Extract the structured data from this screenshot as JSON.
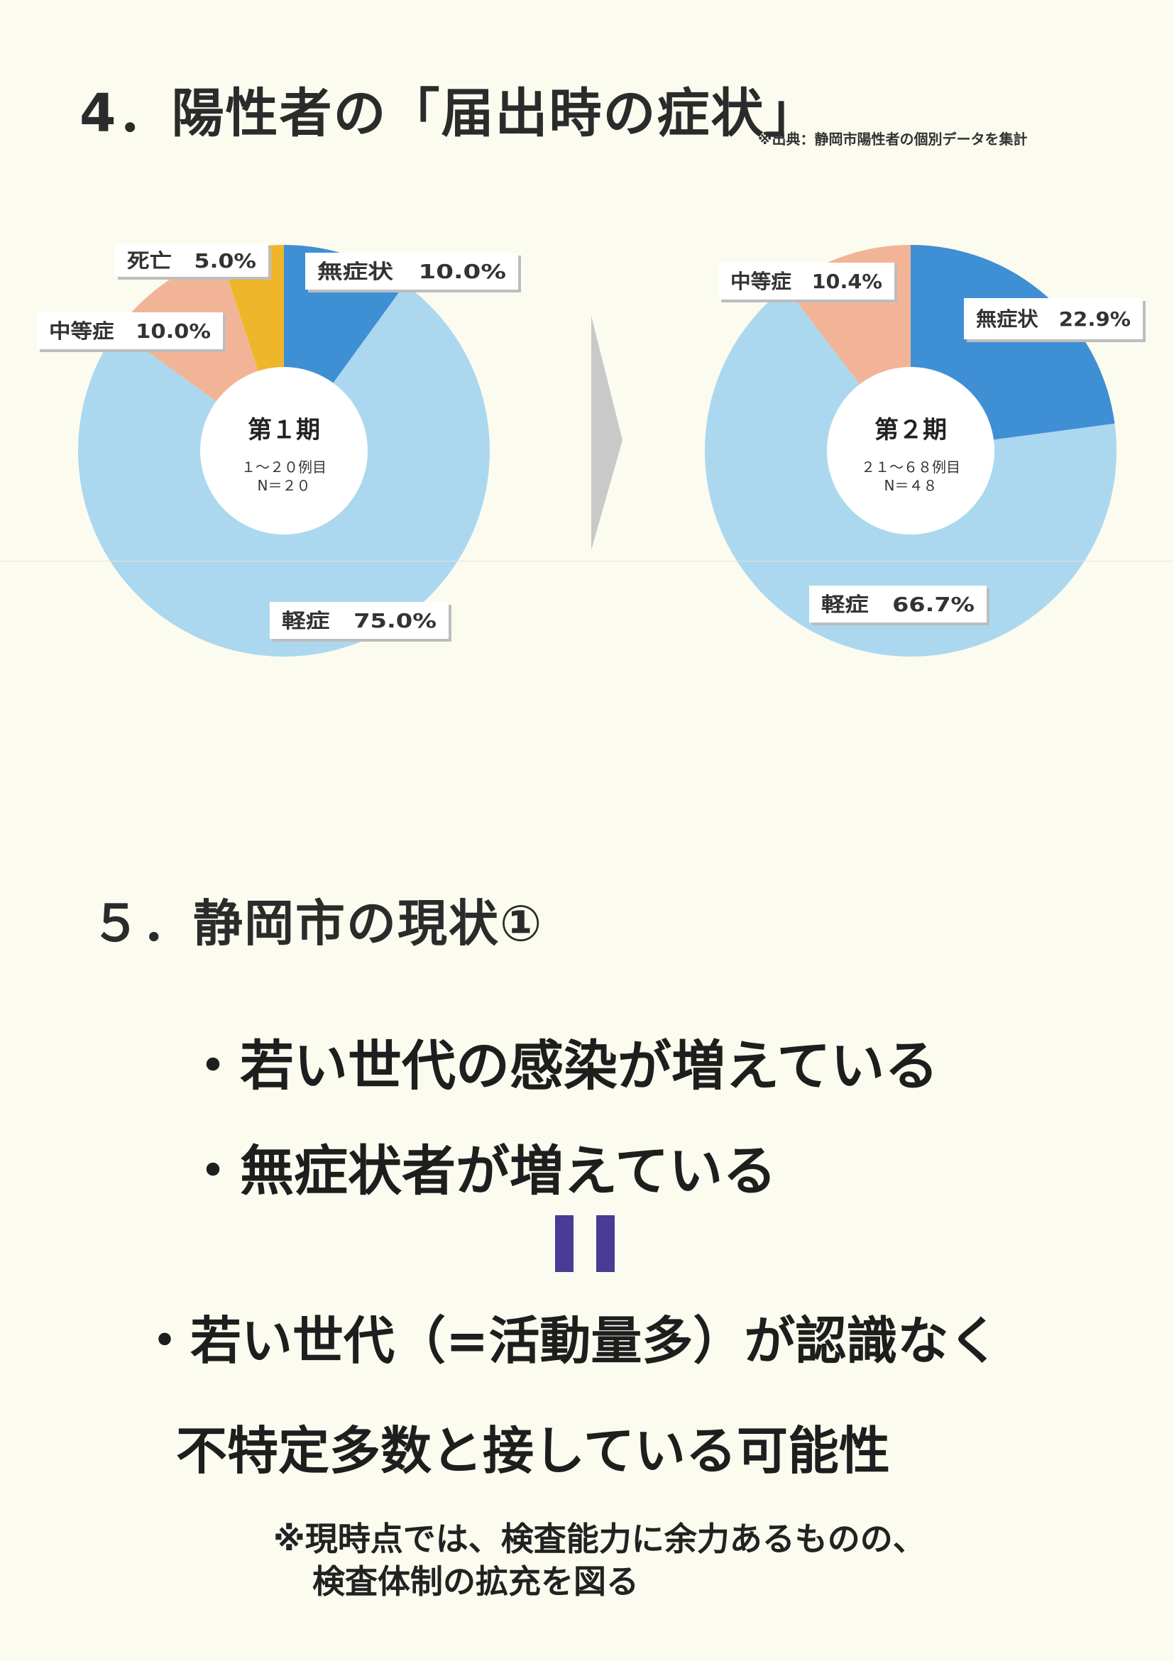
{
  "section4": {
    "title": "4．陽性者の「届出時の症状」",
    "source": "※出典：静岡市陽性者の個別データを集計"
  },
  "chart_data": [
    {
      "type": "pie",
      "title": "第１期",
      "subtitle": "１～２０例目",
      "n_label": "N＝２０",
      "slices": [
        {
          "label": "無症状",
          "value": 10.0,
          "value_label": "10.0%",
          "color": "#3f8fd4"
        },
        {
          "label": "軽症",
          "value": 75.0,
          "value_label": "75.0%",
          "color": "#abd8ef"
        },
        {
          "label": "中等症",
          "value": 10.0,
          "value_label": "10.0%",
          "color": "#f2b497"
        },
        {
          "label": "死亡",
          "value": 5.0,
          "value_label": "5.0%",
          "color": "#efb62b"
        }
      ]
    },
    {
      "type": "pie",
      "title": "第２期",
      "subtitle": "２１～６８例目",
      "n_label": "N＝４８",
      "slices": [
        {
          "label": "無症状",
          "value": 22.9,
          "value_label": "22.9%",
          "color": "#3f8fd4"
        },
        {
          "label": "軽症",
          "value": 66.7,
          "value_label": "66.7%",
          "color": "#abd8ef"
        },
        {
          "label": "中等症",
          "value": 10.4,
          "value_label": "10.4%",
          "color": "#f2b497"
        }
      ]
    }
  ],
  "section5": {
    "title": "５．静岡市の現状①",
    "bullet1": "・若い世代の感染が増えている",
    "bullet2": "・無症状者が増えている",
    "bullet3": "・若い世代（=活動量多）が認識なく",
    "bullet3_cont": "不特定多数と接している可能性",
    "note_line1": "※現時点では、検査能力に余力あるものの、",
    "note_line2": "検査体制の拡充を図る"
  }
}
